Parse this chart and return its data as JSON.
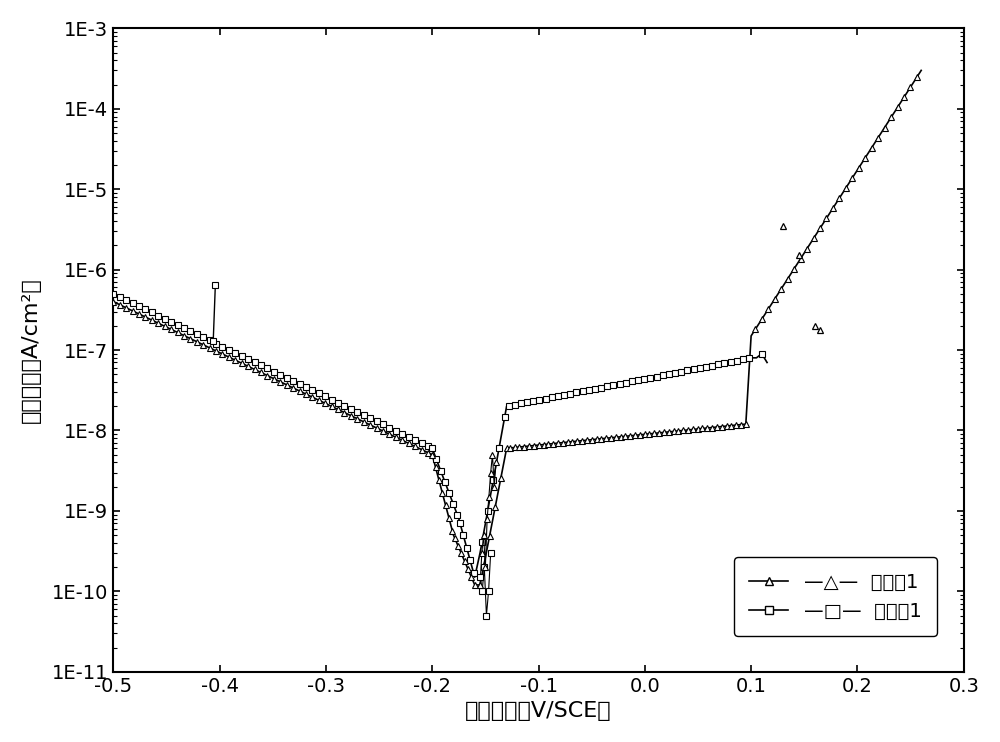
{
  "xlabel": "极化电位（V/SCE）",
  "ylabel": "电流密度（A/cm²）",
  "xlim": [
    -0.5,
    0.3
  ],
  "ylim_log": [
    -11,
    -3
  ],
  "background_color": "#ffffff",
  "legend1_label": "—△—  对比例1",
  "legend2_label": "—□—  实施例1",
  "xticks": [
    -0.5,
    -0.4,
    -0.3,
    -0.2,
    -0.1,
    0.0,
    0.1,
    0.2,
    0.3
  ],
  "yticks_log": [
    -11,
    -10,
    -9,
    -8,
    -7,
    -6,
    -5,
    -4,
    -3
  ],
  "curve1_color": "black",
  "curve2_color": "black"
}
